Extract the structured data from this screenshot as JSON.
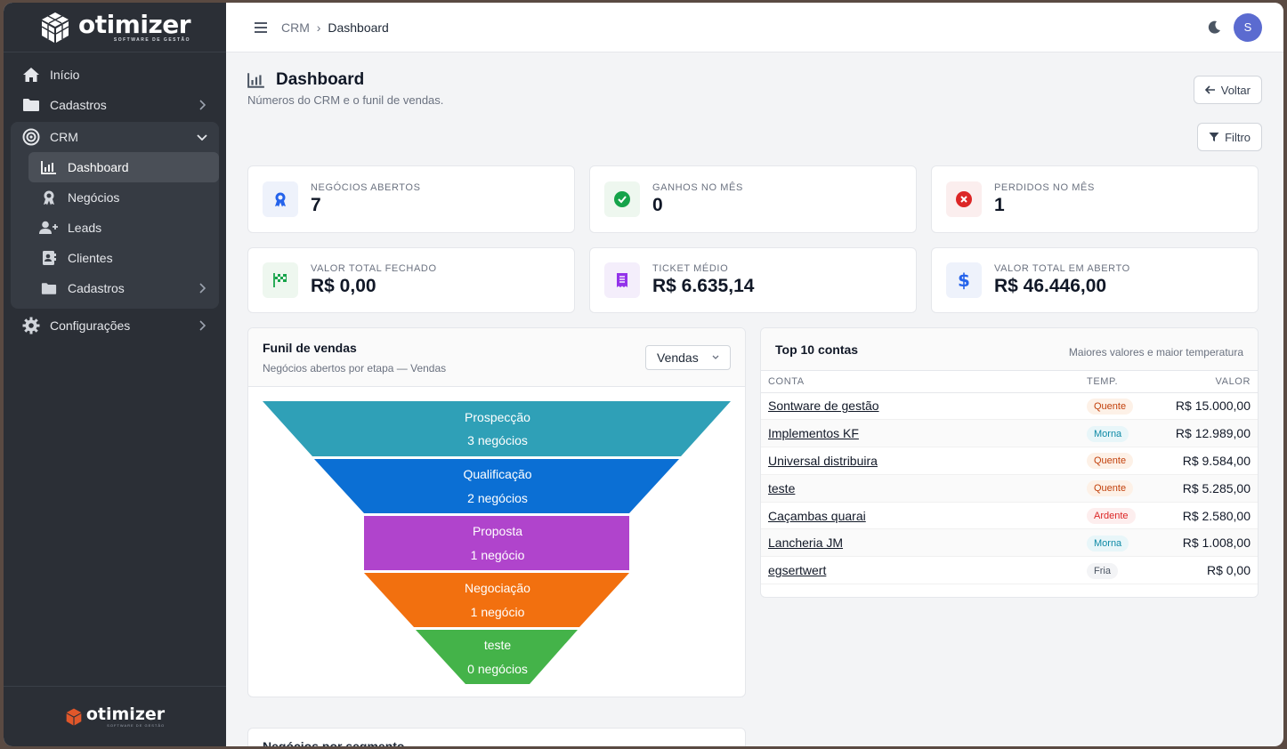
{
  "brand": {
    "name": "otimizer",
    "subtitle": "SOFTWARE DE GESTÃO"
  },
  "sidebar": {
    "items": [
      {
        "label": "Início",
        "icon": "home-icon"
      },
      {
        "label": "Cadastros",
        "icon": "folder-icon"
      },
      {
        "label": "CRM",
        "icon": "target-icon"
      }
    ],
    "crm_sub": [
      {
        "label": "Dashboard",
        "icon": "chart-icon"
      },
      {
        "label": "Negócios",
        "icon": "award-icon"
      },
      {
        "label": "Leads",
        "icon": "user-plus-icon"
      },
      {
        "label": "Clientes",
        "icon": "contact-card-icon"
      },
      {
        "label": "Cadastros",
        "icon": "folder-icon"
      }
    ],
    "config": {
      "label": "Configurações",
      "icon": "gear-icon"
    }
  },
  "topbar": {
    "crumb_root": "CRM",
    "crumb_sep": "›",
    "crumb_current": "Dashboard",
    "avatar_initial": "S"
  },
  "page": {
    "title": "Dashboard",
    "subtitle": "Números do CRM e o funil de vendas.",
    "back_label": "Voltar",
    "filter_label": "Filtro"
  },
  "kpis": [
    {
      "label": "NEGÓCIOS ABERTOS",
      "value": "7",
      "icon": "award-icon",
      "color": "#2563eb",
      "bg": "#eef2fb"
    },
    {
      "label": "GANHOS NO MÊS",
      "value": "0",
      "icon": "check-circle-icon",
      "color": "#16a34a",
      "bg": "#eef7ef"
    },
    {
      "label": "PERDIDOS NO MÊS",
      "value": "1",
      "icon": "x-circle-icon",
      "color": "#dc2626",
      "bg": "#fbeeee"
    },
    {
      "label": "VALOR TOTAL FECHADO",
      "value": "R$ 0,00",
      "icon": "flag-icon",
      "color": "#16a34a",
      "bg": "#eef7ef"
    },
    {
      "label": "TICKET MÉDIO",
      "value": "R$ 6.635,14",
      "icon": "receipt-icon",
      "color": "#9333ea",
      "bg": "#f4eefb"
    },
    {
      "label": "VALOR TOTAL EM ABERTO",
      "value": "R$ 46.446,00",
      "icon": "dollar-icon",
      "color": "#2563eb",
      "bg": "#eef2fb"
    }
  ],
  "funnel": {
    "title": "Funil de vendas",
    "subtitle": "Negócios abertos por etapa — Vendas",
    "select_value": "Vendas",
    "stages": [
      {
        "name": "Prospecção",
        "count": "3 negócios",
        "color": "#2fa0b7"
      },
      {
        "name": "Qualificação",
        "count": "2 negócios",
        "color": "#0b6fd4"
      },
      {
        "name": "Proposta",
        "count": "1 negócio",
        "color": "#b044cc"
      },
      {
        "name": "Negociação",
        "count": "1 negócio",
        "color": "#f2700f"
      },
      {
        "name": "teste",
        "count": "0 negócios",
        "color": "#44b349"
      }
    ]
  },
  "top_accounts": {
    "title": "Top 10 contas",
    "subtitle": "Maiores valores e maior temperatura",
    "columns": [
      "CONTA",
      "TEMP.",
      "VALOR"
    ],
    "rows": [
      {
        "conta": "Sontware de gestão",
        "temp": "Quente",
        "valor": "R$ 15.000,00"
      },
      {
        "conta": "Implementos KF",
        "temp": "Morna",
        "valor": "R$ 12.989,00"
      },
      {
        "conta": "Universal distribuira",
        "temp": "Quente",
        "valor": "R$ 9.584,00"
      },
      {
        "conta": "teste",
        "temp": "Quente",
        "valor": "R$ 5.285,00"
      },
      {
        "conta": "Caçambas quarai",
        "temp": "Ardente",
        "valor": "R$ 2.580,00"
      },
      {
        "conta": "Lancheria JM",
        "temp": "Morna",
        "valor": "R$ 1.008,00"
      },
      {
        "conta": "egsertwert",
        "temp": "Fria",
        "valor": "R$ 0,00"
      }
    ]
  },
  "segment_card": {
    "title": "Negócios por segmento"
  },
  "temp_colors": {
    "Quente": {
      "fg": "#c2410c",
      "bg": "#fdf1e7"
    },
    "Morna": {
      "fg": "#0e8aa6",
      "bg": "#e8f6f9"
    },
    "Ardente": {
      "fg": "#dc2626",
      "bg": "#fdeeee"
    },
    "Fria": {
      "fg": "#4b5563",
      "bg": "#f3f4f6"
    }
  }
}
